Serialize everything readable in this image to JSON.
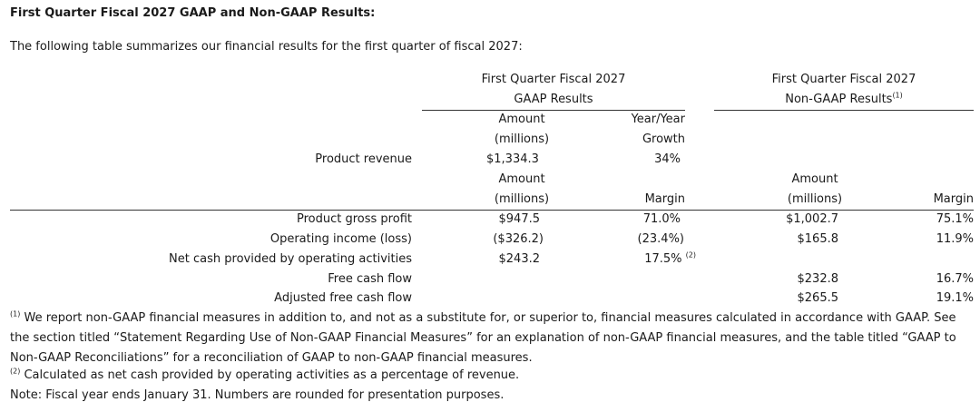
{
  "title": "First Quarter Fiscal 2027 GAAP and Non-GAAP Results:",
  "intro": "The following table summarizes our financial results for the first quarter of fiscal 2027:",
  "gaap_header": {
    "line1": "First Quarter Fiscal 2027",
    "line2": "GAAP Results"
  },
  "nongaap_header": {
    "line1": "First Quarter Fiscal 2027",
    "line2": "Non-GAAP Results",
    "sup": "(1)"
  },
  "col_labels": {
    "amount": "Amount",
    "millions": "(millions)",
    "yoy_line1": "Year/Year",
    "yoy_line2": "Growth",
    "margin": "Margin"
  },
  "revenue_row": {
    "label": "Product revenue",
    "amount": "$1,334.3",
    "growth": "34%"
  },
  "rows": [
    {
      "label": "Product gross profit",
      "gaap_amount": "$947.5",
      "gaap_margin": "71.0%",
      "ng_amount": "$1,002.7",
      "ng_margin": "75.1%"
    },
    {
      "label": "Operating income (loss)",
      "gaap_amount": "($326.2)",
      "gaap_margin": "(23.4%)",
      "ng_amount": "$165.8",
      "ng_margin": "11.9%"
    },
    {
      "label": "Net cash provided by operating activities",
      "gaap_amount": "$243.2",
      "gaap_margin": "17.5%",
      "gaap_margin_sup": "(2)",
      "ng_amount": "",
      "ng_margin": ""
    },
    {
      "label": "Free cash flow",
      "gaap_amount": "",
      "gaap_margin": "",
      "ng_amount": "$232.8",
      "ng_margin": "16.7%"
    },
    {
      "label": "Adjusted free cash flow",
      "gaap_amount": "",
      "gaap_margin": "",
      "ng_amount": "$265.5",
      "ng_margin": "19.1%"
    }
  ],
  "footnotes": {
    "fn1_sup": "(1)",
    "fn1_text": " We report non-GAAP financial measures in addition to, and not as a substitute for, or superior to, financial measures calculated in accordance with GAAP. See the section titled “Statement Regarding Use of Non-GAAP Financial Measures” for an explanation of non-GAAP financial measures, and the table titled “GAAP to Non-GAAP Reconciliations” for a reconciliation of GAAP to non-GAAP financial measures.",
    "fn2_sup": "(2)",
    "fn2_text": " Calculated as net cash provided by operating activities as a percentage of revenue.",
    "note": "Note: Fiscal year ends January 31. Numbers are rounded for presentation purposes."
  }
}
